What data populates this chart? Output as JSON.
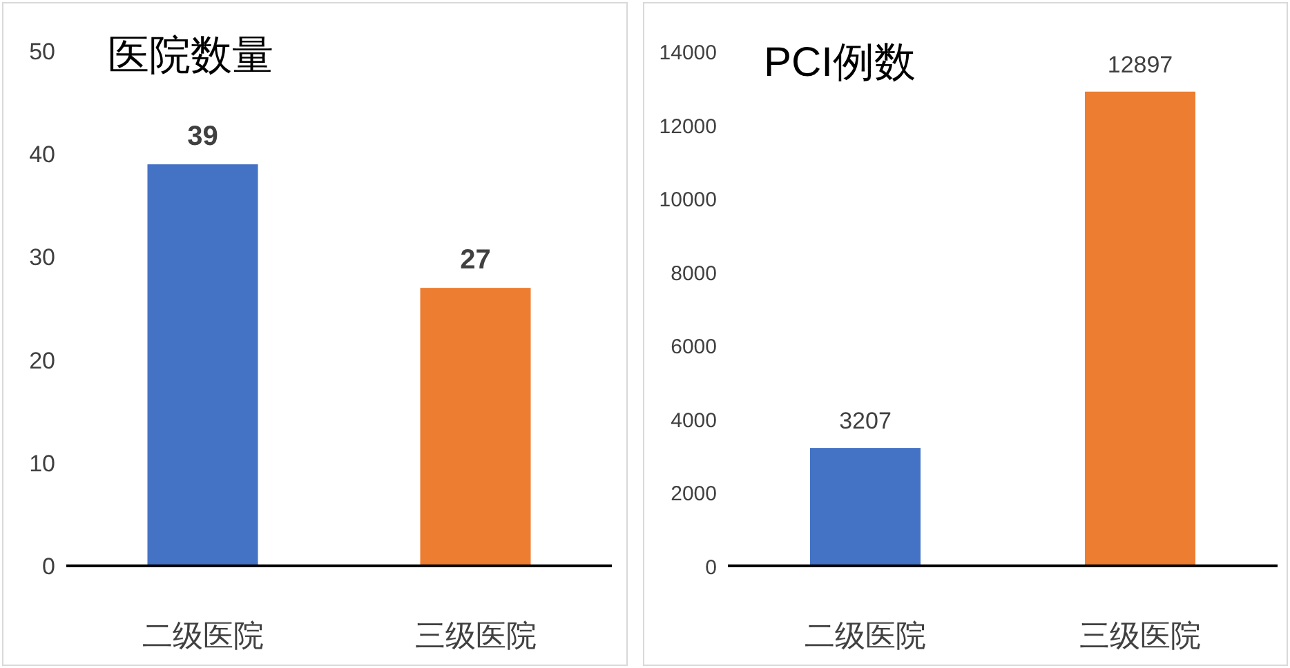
{
  "chart_data": [
    {
      "type": "bar",
      "title": "医院数量",
      "categories": [
        "二级医院",
        "三级医院"
      ],
      "values": [
        39,
        27
      ],
      "colors": [
        "#4472c4",
        "#ed7d31"
      ],
      "ylim": [
        0,
        50
      ],
      "yticks": [
        0,
        10,
        20,
        30,
        40,
        50
      ],
      "data_labels": true
    },
    {
      "type": "bar",
      "title": "PCI例数",
      "categories": [
        "二级医院",
        "三级医院"
      ],
      "values": [
        3207,
        12897
      ],
      "colors": [
        "#4472c4",
        "#ed7d31"
      ],
      "ylim": [
        0,
        14000
      ],
      "yticks": [
        0,
        2000,
        4000,
        6000,
        8000,
        10000,
        12000,
        14000
      ],
      "data_labels": true
    }
  ]
}
